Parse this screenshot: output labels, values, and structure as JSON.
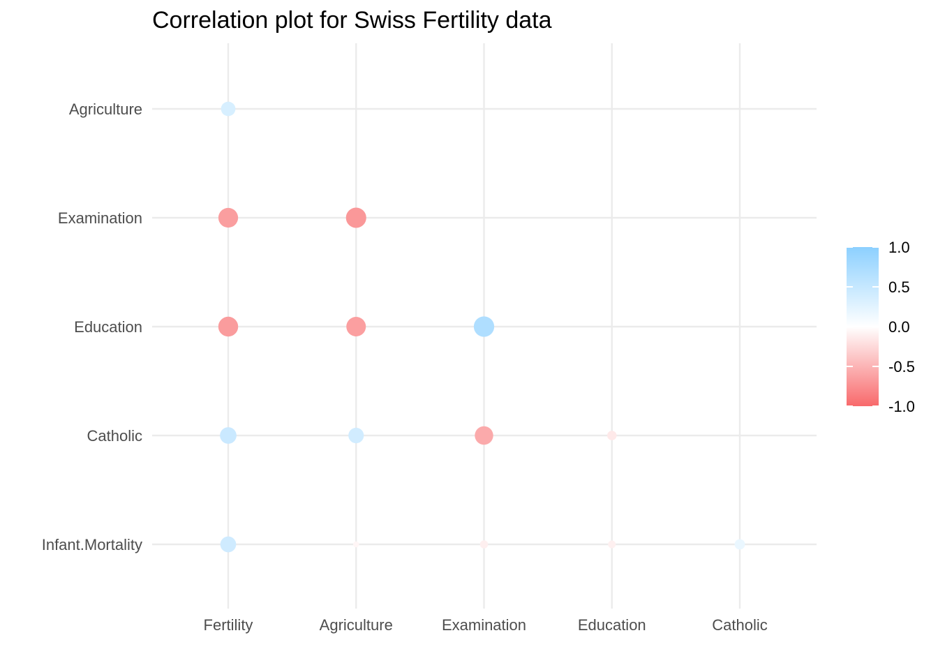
{
  "chart_data": {
    "type": "scatter",
    "subtype": "correlation-bubble",
    "title": "Correlation plot for Swiss Fertility data",
    "x_categories": [
      "Fertility",
      "Agriculture",
      "Examination",
      "Education",
      "Catholic"
    ],
    "y_categories": [
      "Agriculture",
      "Examination",
      "Education",
      "Catholic",
      "Infant.Mortality"
    ],
    "points": [
      {
        "x": "Fertility",
        "y": "Agriculture",
        "value": 0.35
      },
      {
        "x": "Fertility",
        "y": "Examination",
        "value": -0.65
      },
      {
        "x": "Fertility",
        "y": "Education",
        "value": -0.66
      },
      {
        "x": "Fertility",
        "y": "Catholic",
        "value": 0.46
      },
      {
        "x": "Fertility",
        "y": "Infant.Mortality",
        "value": 0.42
      },
      {
        "x": "Agriculture",
        "y": "Examination",
        "value": -0.69
      },
      {
        "x": "Agriculture",
        "y": "Education",
        "value": -0.64
      },
      {
        "x": "Agriculture",
        "y": "Catholic",
        "value": 0.4
      },
      {
        "x": "Agriculture",
        "y": "Infant.Mortality",
        "value": -0.06
      },
      {
        "x": "Examination",
        "y": "Education",
        "value": 0.7
      },
      {
        "x": "Examination",
        "y": "Catholic",
        "value": -0.57
      },
      {
        "x": "Examination",
        "y": "Infant.Mortality",
        "value": -0.11
      },
      {
        "x": "Education",
        "y": "Catholic",
        "value": -0.15
      },
      {
        "x": "Education",
        "y": "Infant.Mortality",
        "value": -0.1
      },
      {
        "x": "Catholic",
        "y": "Infant.Mortality",
        "value": 0.18
      }
    ],
    "legend": {
      "position": "right",
      "ticks": [
        "1.0",
        "0.5",
        "0.0",
        "-0.5",
        "-1.0"
      ],
      "range": [
        -1,
        1
      ]
    },
    "colors": {
      "negative": "#f8696b",
      "neutral": "#ffffff",
      "positive": "#8cd0ff",
      "grid": "#ebebeb"
    },
    "grid": true
  }
}
